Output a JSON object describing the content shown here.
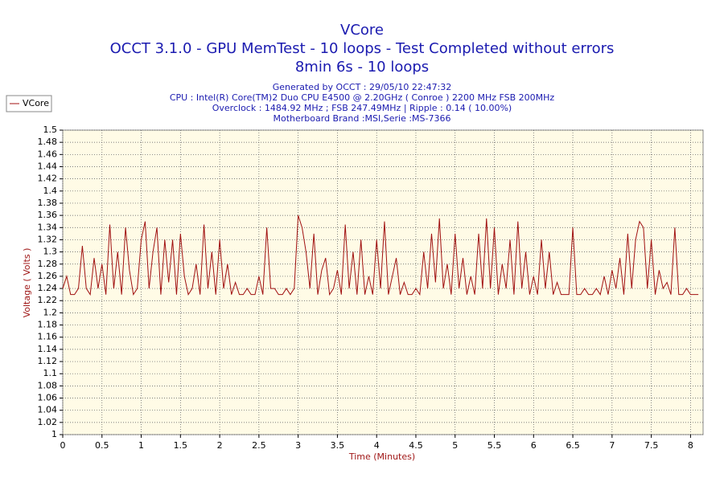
{
  "chart_data": {
    "type": "line",
    "title": "VCore",
    "subtitle": [
      "OCCT 3.1.0 - GPU MemTest - 10 loops - Test Completed without errors",
      "8min 6s - 10 loops"
    ],
    "info": [
      "Generated by OCCT : 29/05/10 22:47:32",
      "CPU : Intel(R) Core(TM)2 Duo CPU E4500 @ 2.20GHz ( Conroe ) 2200 MHz FSB 200MHz",
      "Overclock : 1484.92 MHz ; FSB 247.49MHz | Ripple : 0.14 ( 10.00%)",
      "Motherboard Brand :MSI,Serie :MS-7366"
    ],
    "x_label": "Time (Minutes)",
    "y_label": "Voltage ( Volts )",
    "xlim": [
      0,
      8.16
    ],
    "ylim": [
      1,
      1.5
    ],
    "xticks": [
      0,
      0.5,
      1,
      1.5,
      2,
      2.5,
      3,
      3.5,
      4,
      4.5,
      5,
      5.5,
      6,
      6.5,
      7,
      7.5,
      8
    ],
    "yticks": [
      1,
      1.02,
      1.04,
      1.06,
      1.08,
      1.1,
      1.12,
      1.14,
      1.16,
      1.18,
      1.2,
      1.22,
      1.24,
      1.26,
      1.28,
      1.3,
      1.32,
      1.34,
      1.36,
      1.38,
      1.4,
      1.42,
      1.44,
      1.46,
      1.48,
      1.5
    ],
    "grid": true,
    "legend": "top-left",
    "x": [
      0,
      0.05,
      0.1,
      0.15,
      0.2,
      0.25,
      0.3,
      0.35,
      0.4,
      0.45,
      0.5,
      0.55,
      0.6,
      0.65,
      0.7,
      0.75,
      0.8,
      0.85,
      0.9,
      0.95,
      1,
      1.05,
      1.1,
      1.15,
      1.2,
      1.25,
      1.3,
      1.35,
      1.4,
      1.45,
      1.5,
      1.55,
      1.6,
      1.65,
      1.7,
      1.75,
      1.8,
      1.85,
      1.9,
      1.95,
      2,
      2.05,
      2.1,
      2.15,
      2.2,
      2.25,
      2.3,
      2.35,
      2.4,
      2.45,
      2.5,
      2.55,
      2.6,
      2.65,
      2.7,
      2.75,
      2.8,
      2.85,
      2.9,
      2.95,
      3,
      3.05,
      3.1,
      3.15,
      3.2,
      3.25,
      3.3,
      3.35,
      3.4,
      3.45,
      3.5,
      3.55,
      3.6,
      3.65,
      3.7,
      3.75,
      3.8,
      3.85,
      3.9,
      3.95,
      4,
      4.05,
      4.1,
      4.15,
      4.2,
      4.25,
      4.3,
      4.35,
      4.4,
      4.45,
      4.5,
      4.55,
      4.6,
      4.65,
      4.7,
      4.75,
      4.8,
      4.85,
      4.9,
      4.95,
      5,
      5.05,
      5.1,
      5.15,
      5.2,
      5.25,
      5.3,
      5.35,
      5.4,
      5.45,
      5.5,
      5.55,
      5.6,
      5.65,
      5.7,
      5.75,
      5.8,
      5.85,
      5.9,
      5.95,
      6,
      6.05,
      6.1,
      6.15,
      6.2,
      6.25,
      6.3,
      6.35,
      6.4,
      6.45,
      6.5,
      6.55,
      6.6,
      6.65,
      6.7,
      6.75,
      6.8,
      6.85,
      6.9,
      6.95,
      7,
      7.05,
      7.1,
      7.15,
      7.2,
      7.25,
      7.3,
      7.35,
      7.4,
      7.45,
      7.5,
      7.55,
      7.6,
      7.65,
      7.7,
      7.75,
      7.8,
      7.85,
      7.9,
      7.95,
      8,
      8.05,
      8.1
    ],
    "series": [
      {
        "name": "VCore",
        "color": "#a01010",
        "values": [
          1.24,
          1.26,
          1.23,
          1.23,
          1.24,
          1.31,
          1.24,
          1.23,
          1.29,
          1.24,
          1.28,
          1.23,
          1.345,
          1.24,
          1.3,
          1.23,
          1.34,
          1.27,
          1.23,
          1.24,
          1.32,
          1.35,
          1.24,
          1.3,
          1.34,
          1.23,
          1.32,
          1.25,
          1.32,
          1.23,
          1.33,
          1.26,
          1.23,
          1.24,
          1.28,
          1.23,
          1.345,
          1.24,
          1.3,
          1.23,
          1.32,
          1.24,
          1.28,
          1.23,
          1.25,
          1.23,
          1.23,
          1.24,
          1.23,
          1.23,
          1.26,
          1.23,
          1.34,
          1.24,
          1.24,
          1.23,
          1.23,
          1.24,
          1.23,
          1.24,
          1.36,
          1.34,
          1.3,
          1.24,
          1.33,
          1.23,
          1.27,
          1.29,
          1.23,
          1.24,
          1.27,
          1.23,
          1.345,
          1.24,
          1.3,
          1.23,
          1.32,
          1.23,
          1.26,
          1.23,
          1.32,
          1.24,
          1.35,
          1.23,
          1.26,
          1.29,
          1.23,
          1.25,
          1.23,
          1.23,
          1.24,
          1.23,
          1.3,
          1.24,
          1.33,
          1.25,
          1.355,
          1.24,
          1.28,
          1.23,
          1.33,
          1.24,
          1.29,
          1.23,
          1.26,
          1.23,
          1.33,
          1.24,
          1.355,
          1.24,
          1.34,
          1.23,
          1.28,
          1.24,
          1.32,
          1.23,
          1.35,
          1.24,
          1.3,
          1.23,
          1.26,
          1.23,
          1.32,
          1.24,
          1.3,
          1.23,
          1.25,
          1.23,
          1.23,
          1.23,
          1.34,
          1.23,
          1.23,
          1.24,
          1.23,
          1.23,
          1.24,
          1.23,
          1.26,
          1.23,
          1.27,
          1.24,
          1.29,
          1.23,
          1.33,
          1.24,
          1.32,
          1.35,
          1.34,
          1.24,
          1.32,
          1.23,
          1.27,
          1.24,
          1.25,
          1.23,
          1.34,
          1.23,
          1.23,
          1.24,
          1.23,
          1.23,
          1.23
        ]
      }
    ]
  }
}
